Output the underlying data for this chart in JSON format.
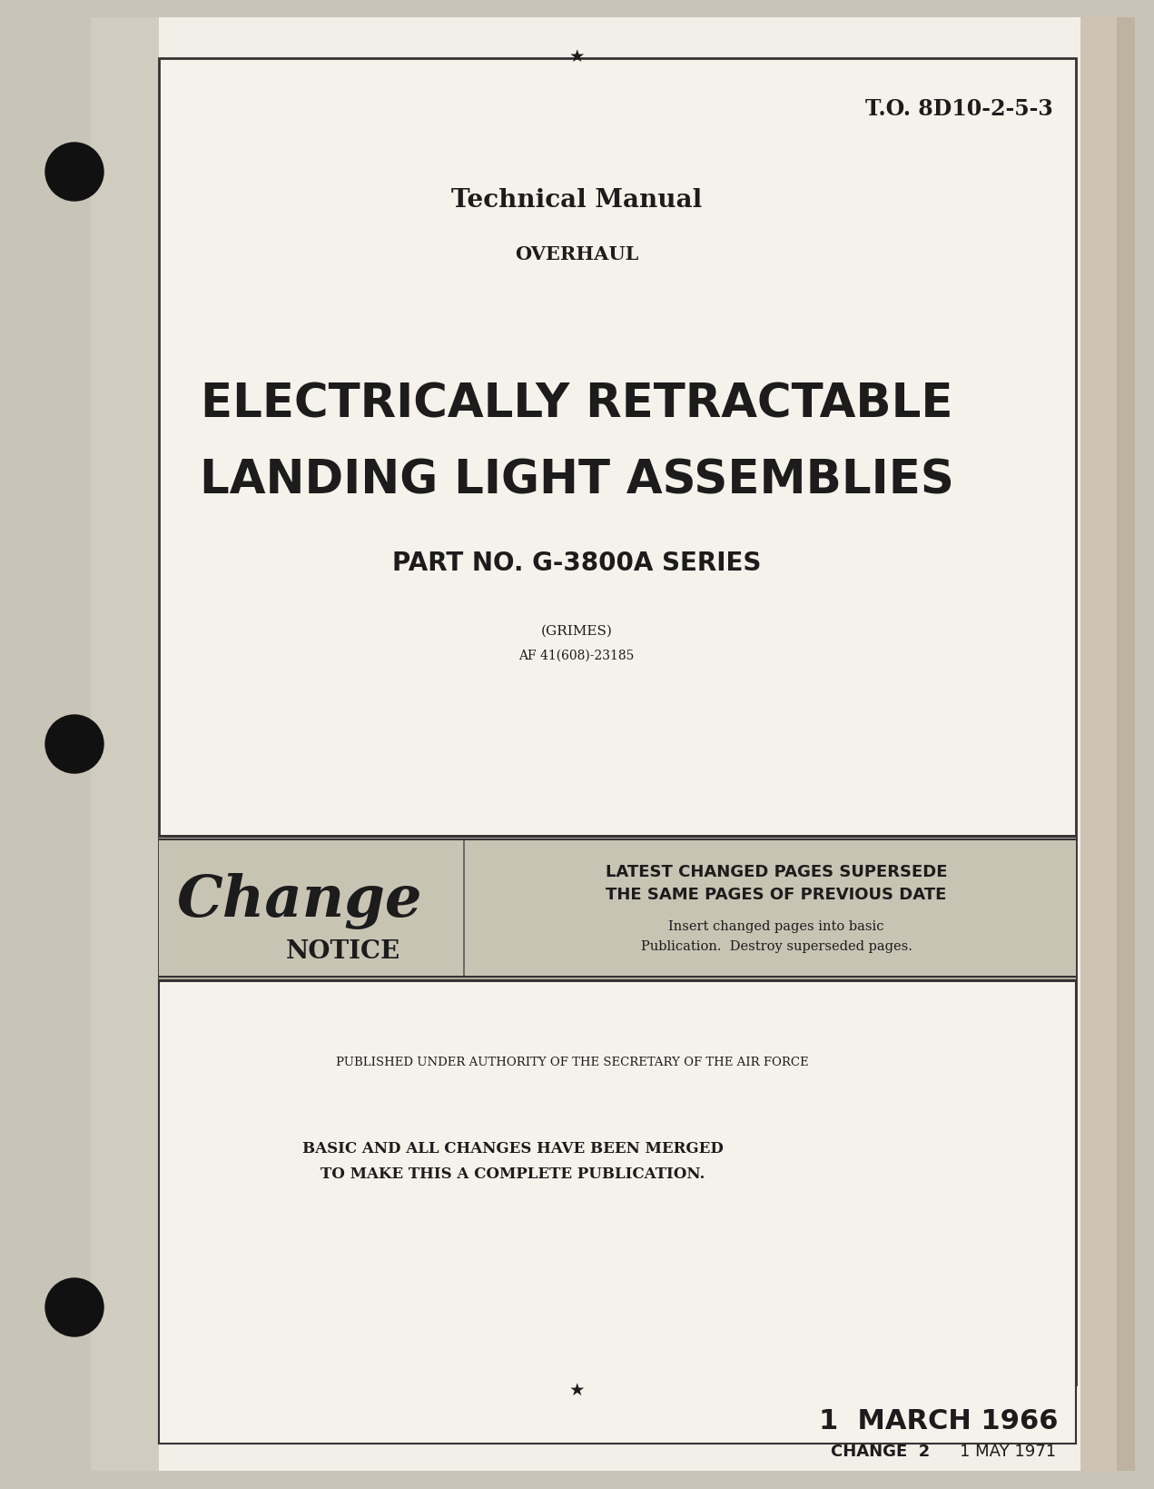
{
  "outer_bg": "#c8c4b8",
  "page_bg": "#f2efe8",
  "white_bg": "#f5f2eb",
  "text_color": "#1c1c1c",
  "border_color": "#333333",
  "change_band_color": "#ccc8bc",
  "to_number": "T.O. 8D10-2-5-3",
  "tech_manual": "Technical Manual",
  "overhaul": "OVERHAUL",
  "main_title_line1": "ELECTRICALLY RETRACTABLE",
  "main_title_line2": "LANDING LIGHT ASSEMBLIES",
  "part_no": "PART NO. G-3800A SERIES",
  "grimes": "(GRIMES)",
  "af_number": "AF 41(608)-23185",
  "change_word": "Change",
  "change_notice": "NOTICE",
  "change_notice_line1": "LATEST CHANGED PAGES SUPERSEDE",
  "change_notice_line2": "THE SAME PAGES OF PREVIOUS DATE",
  "change_notice_line3": "Insert changed pages into basic",
  "change_notice_line4": "Publication.  Destroy superseded pages.",
  "published": "PUBLISHED UNDER AUTHORITY OF THE SECRETARY OF THE AIR FORCE",
  "merged_line1": "BASIC AND ALL CHANGES HAVE BEEN MERGED",
  "merged_line2": "TO MAKE THIS A COMPLETE PUBLICATION.",
  "date_main": "1  MARCH 1966",
  "change_label": "CHANGE  2",
  "change_date": "1 MAY 1971"
}
